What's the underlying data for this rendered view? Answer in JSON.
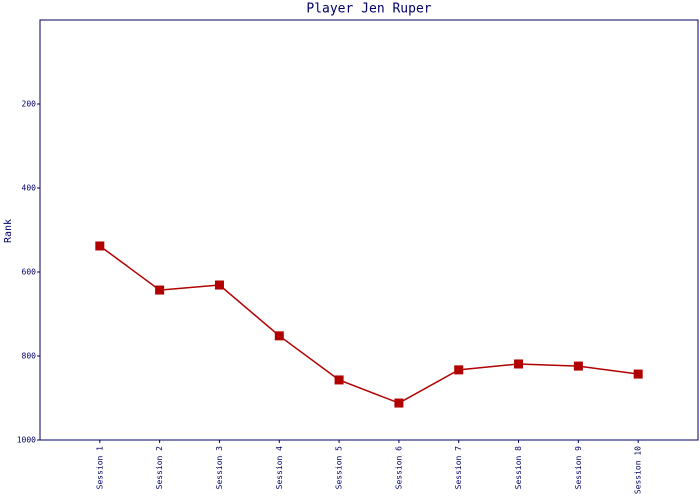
{
  "chart_data": {
    "type": "line",
    "title": "Player Jen Ruper",
    "y_label": "Rank",
    "categories": [
      "Session 1",
      "Session 2",
      "Session 3",
      "Session 4",
      "Session 5",
      "Session 6",
      "Session 7",
      "Session 8",
      "Session 9",
      "Session 10"
    ],
    "series": [
      {
        "name": "Rank",
        "color": "#b00000",
        "values": [
          538,
          643,
          631,
          752,
          857,
          912,
          833,
          819,
          824,
          843
        ]
      }
    ],
    "ylim": [
      0,
      1000
    ],
    "y_inverted": true,
    "yticks": [
      200,
      400,
      600,
      800,
      1000
    ],
    "grid": false
  }
}
